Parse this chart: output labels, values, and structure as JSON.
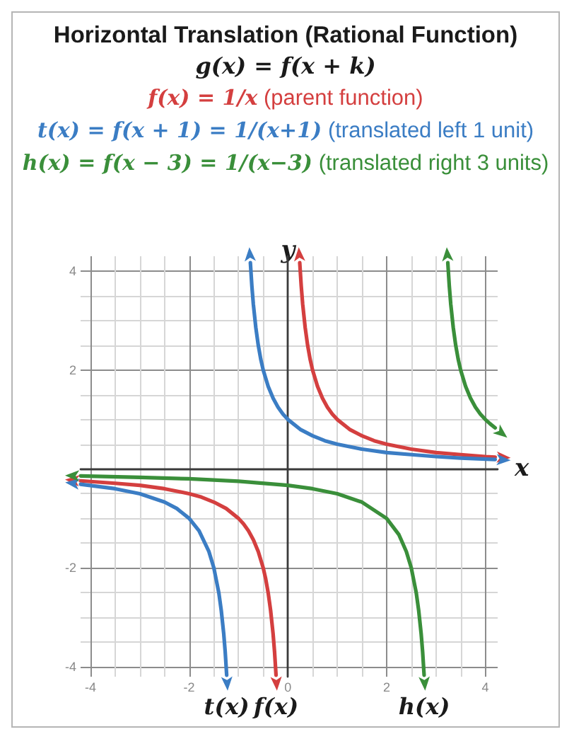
{
  "chart_data": {
    "type": "line",
    "title": "Horizontal Translation (Rational Function)",
    "subtitle": "g(x) = f(x + k)",
    "annotations": [
      "f(x) = 1/x (parent function)",
      "t(x) = f(x + 1) = 1/(x+1) (translated left 1 unit)",
      "h(x) = f(x − 3) = 1/(x−3) (translated right 3 units)"
    ],
    "xlabel": "x",
    "ylabel": "y",
    "legend": "bottom",
    "series": [
      {
        "name": "f(x)",
        "color": "#d43f3f",
        "x": [
          0.24,
          0.27,
          0.3,
          0.35,
          0.4,
          0.45,
          0.5,
          0.6,
          0.7,
          0.8,
          0.9,
          1,
          1.25,
          1.5,
          1.75,
          2,
          2.5,
          3,
          3.5,
          4,
          4.2,
          null,
          -4.2,
          -3.5,
          -3,
          -2.5,
          -2,
          -1.75,
          -1.5,
          -1.25,
          -1,
          -0.9,
          -0.8,
          -0.7,
          -0.6,
          -0.5,
          -0.45,
          -0.4,
          -0.35,
          -0.3,
          -0.27,
          -0.24
        ],
        "values": [
          4.17,
          3.7,
          3.33,
          2.86,
          2.5,
          2.22,
          2,
          1.67,
          1.43,
          1.25,
          1.11,
          1,
          0.8,
          0.67,
          0.57,
          0.5,
          0.4,
          0.33,
          0.29,
          0.25,
          0.24,
          null,
          -0.24,
          -0.29,
          -0.33,
          -0.4,
          -0.5,
          -0.57,
          -0.67,
          -0.8,
          -1,
          -1.11,
          -1.25,
          -1.43,
          -1.67,
          -2,
          -2.22,
          -2.5,
          -2.86,
          -3.33,
          -3.7,
          -4.17
        ]
      },
      {
        "name": "t(x)",
        "color": "#3b7dc4",
        "x": [
          -0.76,
          -0.73,
          -0.7,
          -0.65,
          -0.6,
          -0.55,
          -0.5,
          -0.4,
          -0.3,
          -0.2,
          -0.1,
          0,
          0.25,
          0.5,
          0.75,
          1,
          1.5,
          2,
          2.5,
          3,
          3.5,
          4.2,
          null,
          -4.2,
          -3.5,
          -3,
          -2.5,
          -2.25,
          -2,
          -1.8,
          -1.6,
          -1.5,
          -1.4,
          -1.35,
          -1.3,
          -1.27,
          -1.24
        ],
        "values": [
          4.17,
          3.7,
          3.33,
          2.86,
          2.5,
          2.22,
          2,
          1.67,
          1.43,
          1.25,
          1.11,
          1,
          0.8,
          0.67,
          0.57,
          0.5,
          0.4,
          0.33,
          0.29,
          0.25,
          0.22,
          0.19,
          null,
          -0.31,
          -0.4,
          -0.5,
          -0.67,
          -0.8,
          -1,
          -1.25,
          -1.67,
          -2,
          -2.5,
          -2.86,
          -3.33,
          -3.7,
          -4.17
        ]
      },
      {
        "name": "h(x)",
        "color": "#3a8f3a",
        "x": [
          3.24,
          3.27,
          3.3,
          3.35,
          3.4,
          3.45,
          3.5,
          3.6,
          3.7,
          3.8,
          3.9,
          4,
          4.1,
          4.2,
          null,
          -4.2,
          -3,
          -2,
          -1,
          0,
          0.5,
          1,
          1.5,
          2,
          2.25,
          2.4,
          2.5,
          2.6,
          2.65,
          2.7,
          2.73,
          2.76
        ],
        "values": [
          4.17,
          3.7,
          3.33,
          2.86,
          2.5,
          2.22,
          2,
          1.67,
          1.43,
          1.25,
          1.11,
          1,
          0.91,
          0.83,
          null,
          -0.14,
          -0.17,
          -0.2,
          -0.25,
          -0.33,
          -0.4,
          -0.5,
          -0.67,
          -1,
          -1.33,
          -1.67,
          -2,
          -2.5,
          -2.86,
          -3.33,
          -3.7,
          -4.17
        ]
      }
    ],
    "xlim": [
      -4.2,
      4.25
    ],
    "ylim": [
      -4.2,
      4.3
    ],
    "xticks": [
      -4,
      {
        "value": -3.5,
        "label": null
      },
      {
        "value": -3,
        "label": null
      },
      {
        "value": -2.5,
        "label": null
      },
      -2,
      {
        "value": -1.5,
        "label": null
      },
      {
        "value": -1,
        "label": null
      },
      {
        "value": -0.5,
        "label": null
      },
      0,
      {
        "value": 0.5,
        "label": null
      },
      {
        "value": 1,
        "label": null
      },
      {
        "value": 1.5,
        "label": null
      },
      2,
      {
        "value": 2.5,
        "label": null
      },
      {
        "value": 3,
        "label": null
      },
      {
        "value": 3.5,
        "label": null
      },
      4
    ],
    "yticks": [
      -4,
      {
        "value": -3.5,
        "label": null
      },
      {
        "value": -3,
        "label": null
      },
      {
        "value": -2.5,
        "label": null
      },
      -2,
      {
        "value": -1.5,
        "label": null
      },
      {
        "value": -1,
        "label": null
      },
      {
        "value": -0.5,
        "label": null
      },
      {
        "value": 0,
        "label": null
      },
      {
        "value": 0.5,
        "label": null
      },
      {
        "value": 1,
        "label": null
      },
      {
        "value": 1.5,
        "label": null
      },
      2,
      {
        "value": 2.5,
        "label": null
      },
      {
        "value": 3,
        "label": null
      },
      {
        "value": 3.5,
        "label": null
      },
      4
    ],
    "grid": true
  }
}
